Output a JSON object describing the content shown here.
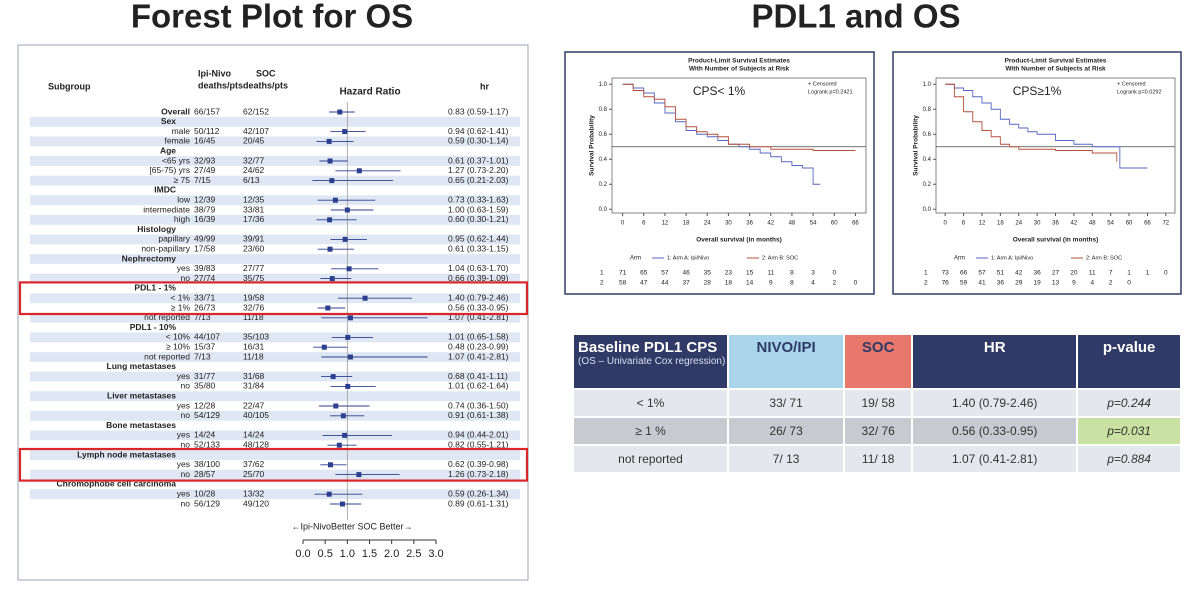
{
  "titles": [
    "Forest Plot for OS",
    "PDL1 and OS"
  ],
  "chart_data": [
    {
      "type": "forest",
      "columns": {
        "subgroup": "Subgroup",
        "ipi_nivo": [
          "Ipi-Nivo",
          "deaths/pts"
        ],
        "soc": [
          "SOC",
          "deaths/pts"
        ],
        "hr": "hr"
      },
      "xlabel": "Hazard Ratio",
      "annotation": "←Ipi-NivoBetter SOC Better→",
      "xlim": [
        0,
        3
      ],
      "xticks": [
        {
          "value": 0,
          "label": "0.0"
        },
        {
          "value": 0.5,
          "label": "0.5"
        },
        {
          "value": 1,
          "label": "1.0"
        },
        {
          "value": 1.5,
          "label": "1.5"
        },
        {
          "value": 2,
          "label": "2.0"
        },
        {
          "value": 2.5,
          "label": "2.5"
        },
        {
          "value": 3,
          "label": "3.0"
        }
      ],
      "reference_line": 1,
      "color": "#2b3f8f",
      "rows": [
        {
          "subgroup": "Overall",
          "ipi_nivo": "66/157",
          "soc": "62/152",
          "hr_label": "0.83 (0.59-1.17)",
          "hr": 0.83,
          "lower": 0.59,
          "upper": 1.17
        },
        {
          "subgroup": "Sex"
        },
        {
          "subgroup": "male",
          "ipi_nivo": "50/112",
          "soc": "42/107",
          "hr_label": "0.94 (0.62-1.41)",
          "hr": 0.94,
          "lower": 0.62,
          "upper": 1.41
        },
        {
          "subgroup": "female",
          "ipi_nivo": "16/45",
          "soc": "20/45",
          "hr_label": "0.59 (0.30-1.14)",
          "hr": 0.59,
          "lower": 0.3,
          "upper": 1.14
        },
        {
          "subgroup": "Age"
        },
        {
          "subgroup": "<65 yrs",
          "ipi_nivo": "32/93",
          "soc": "32/77",
          "hr_label": "0.61 (0.37-1.01)",
          "hr": 0.61,
          "lower": 0.37,
          "upper": 1.01
        },
        {
          "subgroup": "[65-75) yrs",
          "ipi_nivo": "27/49",
          "soc": "24/62",
          "hr_label": "1.27 (0.73-2.20)",
          "hr": 1.27,
          "lower": 0.73,
          "upper": 2.2
        },
        {
          "subgroup": "≥ 75",
          "ipi_nivo": "7/15",
          "soc": "6/13",
          "hr_label": "0.65 (0.21-2.03)",
          "hr": 0.65,
          "lower": 0.21,
          "upper": 2.03
        },
        {
          "subgroup": "IMDC"
        },
        {
          "subgroup": "low",
          "ipi_nivo": "12/39",
          "soc": "12/35",
          "hr_label": "0.73 (0.33-1.63)",
          "hr": 0.73,
          "lower": 0.33,
          "upper": 1.63
        },
        {
          "subgroup": "intermediate",
          "ipi_nivo": "38/79",
          "soc": "33/81",
          "hr_label": "1.00 (0.63-1.59)",
          "hr": 1.0,
          "lower": 0.63,
          "upper": 1.59
        },
        {
          "subgroup": "high",
          "ipi_nivo": "16/39",
          "soc": "17/36",
          "hr_label": "0.60 (0.30-1.21)",
          "hr": 0.6,
          "lower": 0.3,
          "upper": 1.21
        },
        {
          "subgroup": "Histology"
        },
        {
          "subgroup": "papillary",
          "ipi_nivo": "49/99",
          "soc": "39/91",
          "hr_label": "0.95 (0.62-1.44)",
          "hr": 0.95,
          "lower": 0.62,
          "upper": 1.44
        },
        {
          "subgroup": "non-papillary",
          "ipi_nivo": "17/58",
          "soc": "23/60",
          "hr_label": "0.61 (0.33-1.15)",
          "hr": 0.61,
          "lower": 0.33,
          "upper": 1.15
        },
        {
          "subgroup": "Nephrectomy"
        },
        {
          "subgroup": "yes",
          "ipi_nivo": "39/83",
          "soc": "27/77",
          "hr_label": "1.04 (0.63-1.70)",
          "hr": 1.04,
          "lower": 0.63,
          "upper": 1.7
        },
        {
          "subgroup": "no",
          "ipi_nivo": "27/74",
          "soc": "35/75",
          "hr_label": "0.66 (0.39-1.09)",
          "hr": 0.66,
          "lower": 0.39,
          "upper": 1.09
        },
        {
          "subgroup": "PDL1 - 1%"
        },
        {
          "subgroup": "< 1%",
          "ipi_nivo": "33/71",
          "soc": "19/58",
          "hr_label": "1.40 (0.79-2.46)",
          "hr": 1.4,
          "lower": 0.79,
          "upper": 2.46
        },
        {
          "subgroup": "≥ 1%",
          "ipi_nivo": "26/73",
          "soc": "32/76",
          "hr_label": "0.56 (0.33-0.95)",
          "hr": 0.56,
          "lower": 0.33,
          "upper": 0.95
        },
        {
          "subgroup": "not reported",
          "ipi_nivo": "7/13",
          "soc": "11/18",
          "hr_label": "1.07 (0.41-2.81)",
          "hr": 1.07,
          "lower": 0.41,
          "upper": 2.81
        },
        {
          "subgroup": "PDL1 - 10%"
        },
        {
          "subgroup": "< 10%",
          "ipi_nivo": "44/107",
          "soc": "35/103",
          "hr_label": "1.01 (0.65-1.58)",
          "hr": 1.01,
          "lower": 0.65,
          "upper": 1.58
        },
        {
          "subgroup": "≥ 10%",
          "ipi_nivo": "15/37",
          "soc": "16/31",
          "hr_label": "0.48 (0.23-0.99)",
          "hr": 0.48,
          "lower": 0.23,
          "upper": 0.99
        },
        {
          "subgroup": "not reported",
          "ipi_nivo": "7/13",
          "soc": "11/18",
          "hr_label": "1.07 (0.41-2.81)",
          "hr": 1.07,
          "lower": 0.41,
          "upper": 2.81
        },
        {
          "subgroup": "Lung metastases"
        },
        {
          "subgroup": "yes",
          "ipi_nivo": "31/77",
          "soc": "31/68",
          "hr_label": "0.68 (0.41-1.11)",
          "hr": 0.68,
          "lower": 0.41,
          "upper": 1.11
        },
        {
          "subgroup": "no",
          "ipi_nivo": "35/80",
          "soc": "31/84",
          "hr_label": "1.01 (0.62-1.64)",
          "hr": 1.01,
          "lower": 0.62,
          "upper": 1.64
        },
        {
          "subgroup": "Liver metastases"
        },
        {
          "subgroup": "yes",
          "ipi_nivo": "12/28",
          "soc": "22/47",
          "hr_label": "0.74 (0.36-1.50)",
          "hr": 0.74,
          "lower": 0.36,
          "upper": 1.5
        },
        {
          "subgroup": "no",
          "ipi_nivo": "54/129",
          "soc": "40/105",
          "hr_label": "0.91 (0.61-1.38)",
          "hr": 0.91,
          "lower": 0.61,
          "upper": 1.38
        },
        {
          "subgroup": "Bone metastases"
        },
        {
          "subgroup": "yes",
          "ipi_nivo": "14/24",
          "soc": "14/24",
          "hr_label": "0.94 (0.44-2.01)",
          "hr": 0.94,
          "lower": 0.44,
          "upper": 2.01
        },
        {
          "subgroup": "no",
          "ipi_nivo": "52/133",
          "soc": "48/128",
          "hr_label": "0.82 (0.55-1.21)",
          "hr": 0.82,
          "lower": 0.55,
          "upper": 1.21
        },
        {
          "subgroup": "Lymph node metastases"
        },
        {
          "subgroup": "yes",
          "ipi_nivo": "38/100",
          "soc": "37/62",
          "hr_label": "0.62 (0.39-0.98)",
          "hr": 0.62,
          "lower": 0.39,
          "upper": 0.98
        },
        {
          "subgroup": "no",
          "ipi_nivo": "28/57",
          "soc": "25/70",
          "hr_label": "1.26 (0.73-2.18)",
          "hr": 1.26,
          "lower": 0.73,
          "upper": 2.18
        },
        {
          "subgroup": "Chromophobe cell carcinoma"
        },
        {
          "subgroup": "yes",
          "ipi_nivo": "10/28",
          "soc": "13/32",
          "hr_label": "0.59 (0.26-1.34)",
          "hr": 0.59,
          "lower": 0.26,
          "upper": 1.34
        },
        {
          "subgroup": "no",
          "ipi_nivo": "56/129",
          "soc": "49/120",
          "hr_label": "0.89 (0.61-1.31)",
          "hr": 0.89,
          "lower": 0.61,
          "upper": 1.31
        }
      ]
    },
    {
      "type": "line",
      "title": "Product-Limit Survival Estimates",
      "subtitle": "With Number of Subjects at Risk",
      "annotation": "CPS< 1%",
      "legend_notes": [
        "+ Censored",
        "Logrank p=0.2421"
      ],
      "xlabel": "Overall survival (in months)",
      "ylabel": "Survival Probability",
      "xlim": [
        -3,
        69
      ],
      "ylim": [
        -0.03,
        1.05
      ],
      "xticks": [
        0,
        6,
        12,
        18,
        24,
        30,
        36,
        42,
        48,
        54,
        60,
        66
      ],
      "yticks": [
        {
          "value": 0,
          "label": "0.0"
        },
        {
          "value": 0.2,
          "label": "0.2"
        },
        {
          "value": 0.4,
          "label": "0.4"
        },
        {
          "value": 0.6,
          "label": "0.6"
        },
        {
          "value": 0.8,
          "label": "0.8"
        },
        {
          "value": 1,
          "label": "1.0"
        }
      ],
      "reference_line": 0.5,
      "legend_title": "Arm",
      "series": [
        {
          "name": "1: Arm A: Ipi/Nivo",
          "id": "1",
          "color": "#5567c4",
          "x": [
            0,
            3,
            6,
            9,
            12,
            15,
            18,
            21,
            24,
            27,
            30,
            33,
            36,
            39,
            42,
            45,
            48,
            51,
            54,
            56
          ],
          "values": [
            1,
            0.97,
            0.93,
            0.85,
            0.77,
            0.7,
            0.63,
            0.6,
            0.58,
            0.55,
            0.52,
            0.5,
            0.48,
            0.45,
            0.42,
            0.38,
            0.35,
            0.33,
            0.2,
            0.2
          ],
          "at_risk": [
            71,
            65,
            57,
            46,
            35,
            23,
            15,
            11,
            8,
            3,
            0
          ]
        },
        {
          "name": "2: Arm B: SOC",
          "id": "2",
          "color": "#b5503a",
          "x": [
            0,
            3,
            6,
            9,
            12,
            15,
            18,
            21,
            24,
            27,
            30,
            33,
            36,
            42,
            48,
            54,
            60,
            66
          ],
          "values": [
            1,
            0.95,
            0.9,
            0.88,
            0.82,
            0.72,
            0.66,
            0.62,
            0.6,
            0.58,
            0.52,
            0.52,
            0.5,
            0.48,
            0.48,
            0.47,
            0.47,
            0.47
          ],
          "at_risk": [
            58,
            47,
            44,
            37,
            28,
            18,
            14,
            9,
            8,
            4,
            2,
            0
          ]
        }
      ]
    },
    {
      "type": "line",
      "title": "Product-Limit Survival Estimates",
      "subtitle": "With Number of Subjects at Risk",
      "annotation": "CPS≥1%",
      "legend_notes": [
        "+ Censored",
        "Logrank p=0.0292"
      ],
      "xlabel": "Overall survival (in months)",
      "ylabel": "Survival Probability",
      "xlim": [
        -3,
        75
      ],
      "ylim": [
        -0.03,
        1.05
      ],
      "xticks": [
        0,
        6,
        12,
        18,
        24,
        30,
        36,
        42,
        48,
        54,
        60,
        66,
        72
      ],
      "yticks": [
        {
          "value": 0,
          "label": "0.0"
        },
        {
          "value": 0.2,
          "label": "0.2"
        },
        {
          "value": 0.4,
          "label": "0.4"
        },
        {
          "value": 0.6,
          "label": "0.6"
        },
        {
          "value": 0.8,
          "label": "0.8"
        },
        {
          "value": 1,
          "label": "1.0"
        }
      ],
      "reference_line": 0.5,
      "legend_title": "Arm",
      "series": [
        {
          "name": "1: Arm A: Ipi/Nivo",
          "id": "1",
          "color": "#5567c4",
          "x": [
            0,
            3,
            6,
            9,
            12,
            15,
            18,
            21,
            24,
            27,
            30,
            36,
            42,
            48,
            54,
            57,
            66
          ],
          "values": [
            1,
            0.97,
            0.95,
            0.9,
            0.85,
            0.8,
            0.72,
            0.68,
            0.65,
            0.62,
            0.6,
            0.55,
            0.52,
            0.5,
            0.5,
            0.33,
            0.33
          ],
          "at_risk": [
            73,
            66,
            57,
            51,
            42,
            36,
            27,
            20,
            11,
            7,
            1,
            1,
            0
          ]
        },
        {
          "name": "2: Arm B: SOC",
          "id": "2",
          "color": "#b5503a",
          "x": [
            0,
            3,
            6,
            9,
            12,
            15,
            18,
            21,
            24,
            30,
            36,
            42,
            48,
            54,
            56
          ],
          "values": [
            1,
            0.9,
            0.78,
            0.7,
            0.63,
            0.58,
            0.52,
            0.5,
            0.48,
            0.48,
            0.47,
            0.47,
            0.45,
            0.45,
            0.38
          ],
          "at_risk": [
            76,
            59,
            41,
            36,
            29,
            19,
            13,
            9,
            4,
            2,
            0
          ]
        }
      ]
    }
  ],
  "table": {
    "header": [
      "Baseline PDL1 CPS",
      "NIVO/IPI",
      "SOC",
      "HR",
      "p-value"
    ],
    "note": "(OS – Univariate Cox regression)",
    "rows": [
      [
        "< 1%",
        "33/ 71",
        "19/ 58",
        "1.40 (0.79-2.46)",
        "p=0.244"
      ],
      [
        "≥ 1 %",
        "26/ 73",
        "32/ 76",
        "0.56 (0.33-0.95)",
        "p=0.031"
      ],
      [
        "not reported",
        "7/ 13",
        "11/ 18",
        "1.07 (0.41-2.81)",
        "p=0.884"
      ]
    ]
  }
}
